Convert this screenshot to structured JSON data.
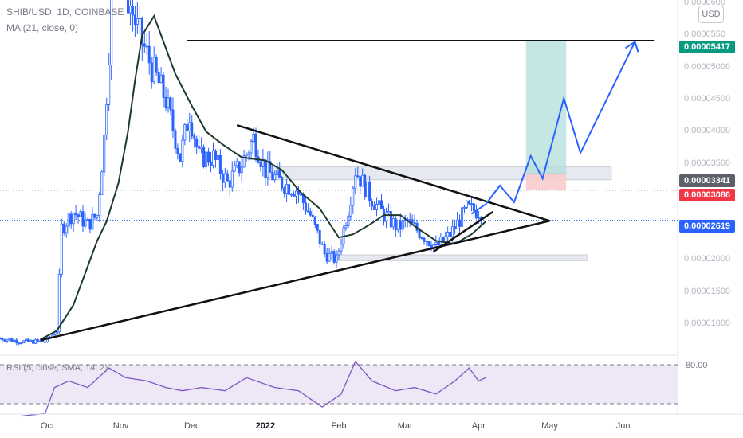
{
  "header": {
    "symbol": "SHIB/USD, 1D, COINBASE",
    "indicator": "MA (21, close, 0)"
  },
  "currency_button": "USD",
  "price_tags": [
    {
      "label": "0.00005417",
      "color": "#089981"
    },
    {
      "label": "0.00003341",
      "color": "#5d606b"
    },
    {
      "label": "0.00003086",
      "color": "#f23645"
    },
    {
      "label": "0.00002619",
      "color": "#2962ff"
    }
  ],
  "rsi": {
    "label": "RSI (5, close, SMA, 14, 2)",
    "upper": "80.00",
    "upper_value": 80,
    "lower_value": 20
  },
  "colors": {
    "candle": "#2962ff",
    "ma": "#1e3a2f",
    "pattern": "#111111",
    "projection": "#2962ff",
    "rsi_line": "#7e57c2",
    "rsi_band": "#ede7f6",
    "target_zone": "#b2dfdb",
    "stop_zone": "#f8c9ca",
    "sr_zone": "#e0e3eb"
  },
  "chart_data": {
    "type": "candlestick",
    "title": "SHIB/USD, 1D, COINBASE",
    "xlabel": "",
    "ylabel": "",
    "y_tick_labels": [
      "0.0000600",
      "0.0000550",
      "0.00005000",
      "0.00004500",
      "0.00004000",
      "0.00003500",
      "0.00003000",
      "0.00002500",
      "0.00002000",
      "0.00001500",
      "0.00001000"
    ],
    "y_ticks": [
      6e-05,
      5.5e-05,
      5e-05,
      4.5e-05,
      4e-05,
      3.5e-05,
      3e-05,
      2.5e-05,
      2e-05,
      1.5e-05,
      1e-05
    ],
    "x_tick_labels": [
      "Oct",
      "Nov",
      "Dec",
      "2022",
      "Feb",
      "Mar",
      "Apr",
      "May",
      "Jun"
    ],
    "x_ticks": [
      "2021-10-01",
      "2021-11-01",
      "2021-12-01",
      "2022-01-01",
      "2022-02-01",
      "2022-03-01",
      "2022-04-01",
      "2022-05-01",
      "2022-06-01"
    ],
    "ylim": [
      5.3e-06,
      6.05e-05
    ],
    "xlim": [
      "2021-09-11",
      "2022-06-24"
    ],
    "grid": false,
    "close_path": [
      [
        "2021-09-11",
        7.8e-06
      ],
      [
        "2021-09-20",
        7.3e-06
      ],
      [
        "2021-09-30",
        7.3e-06
      ],
      [
        "2021-10-05",
        9e-06
      ],
      [
        "2021-10-07",
        2.5e-05
      ],
      [
        "2021-10-12",
        2.75e-05
      ],
      [
        "2021-10-18",
        2.55e-05
      ],
      [
        "2021-10-22",
        2.7e-05
      ],
      [
        "2021-10-25",
        3.9e-05
      ],
      [
        "2021-10-27",
        5.3e-05
      ],
      [
        "2021-10-28",
        6.9e-05
      ],
      [
        "2021-10-31",
        7e-05
      ],
      [
        "2021-11-03",
        6.2e-05
      ],
      [
        "2021-11-08",
        5.6e-05
      ],
      [
        "2021-11-14",
        5e-05
      ],
      [
        "2021-11-20",
        4.5e-05
      ],
      [
        "2021-11-26",
        3.6e-05
      ],
      [
        "2021-11-30",
        4.3e-05
      ],
      [
        "2021-12-04",
        3.6e-05
      ],
      [
        "2021-12-10",
        3.6e-05
      ],
      [
        "2021-12-16",
        3.2e-05
      ],
      [
        "2021-12-22",
        3.5e-05
      ],
      [
        "2021-12-27",
        3.9e-05
      ],
      [
        "2022-01-01",
        3.4e-05
      ],
      [
        "2022-01-08",
        3.2e-05
      ],
      [
        "2022-01-14",
        3.1e-05
      ],
      [
        "2022-01-20",
        2.7e-05
      ],
      [
        "2022-01-26",
        2.1e-05
      ],
      [
        "2022-01-31",
        2e-05
      ],
      [
        "2022-02-05",
        2.8e-05
      ],
      [
        "2022-02-08",
        3.4e-05
      ],
      [
        "2022-02-14",
        3e-05
      ],
      [
        "2022-02-20",
        2.7e-05
      ],
      [
        "2022-02-26",
        2.5e-05
      ],
      [
        "2022-03-02",
        2.6e-05
      ],
      [
        "2022-03-08",
        2.4e-05
      ],
      [
        "2022-03-14",
        2.2e-05
      ],
      [
        "2022-03-20",
        2.4e-05
      ],
      [
        "2022-03-27",
        2.8e-05
      ],
      [
        "2022-04-02",
        2.75e-05
      ]
    ],
    "series": [
      {
        "name": "MA (21, close, 0)",
        "points": [
          [
            "2021-09-28",
            7.6e-06
          ],
          [
            "2021-10-05",
            9e-06
          ],
          [
            "2021-10-12",
            1.3e-05
          ],
          [
            "2021-10-18",
            1.9e-05
          ],
          [
            "2021-10-22",
            2.3e-05
          ],
          [
            "2021-10-26",
            2.6e-05
          ],
          [
            "2021-10-31",
            3.2e-05
          ],
          [
            "2021-11-04",
            4e-05
          ],
          [
            "2021-11-07",
            4.8e-05
          ],
          [
            "2021-11-10",
            5.5e-05
          ],
          [
            "2021-11-15",
            5.8e-05
          ],
          [
            "2021-11-19",
            5.4e-05
          ],
          [
            "2021-11-24",
            4.9e-05
          ],
          [
            "2021-12-01",
            4.4e-05
          ],
          [
            "2021-12-07",
            4e-05
          ],
          [
            "2021-12-14",
            3.8e-05
          ],
          [
            "2021-12-22",
            3.6e-05
          ],
          [
            "2022-01-01",
            3.55e-05
          ],
          [
            "2022-01-08",
            3.4e-05
          ],
          [
            "2022-01-16",
            3.05e-05
          ],
          [
            "2022-01-24",
            2.8e-05
          ],
          [
            "2022-02-01",
            2.35e-05
          ],
          [
            "2022-02-07",
            2.4e-05
          ],
          [
            "2022-02-14",
            2.55e-05
          ],
          [
            "2022-02-20",
            2.7e-05
          ],
          [
            "2022-02-27",
            2.7e-05
          ],
          [
            "2022-03-06",
            2.5e-05
          ],
          [
            "2022-03-14",
            2.3e-05
          ],
          [
            "2022-03-22",
            2.25e-05
          ],
          [
            "2022-03-29",
            2.4e-05
          ],
          [
            "2022-04-04",
            2.6e-05
          ]
        ]
      },
      {
        "name": "RSI (5, close, SMA, 14, 2)",
        "points": [
          [
            "2021-09-20",
            1
          ],
          [
            "2021-09-30",
            5
          ],
          [
            "2021-10-04",
            45
          ],
          [
            "2021-10-10",
            55
          ],
          [
            "2021-10-18",
            45
          ],
          [
            "2021-10-27",
            75
          ],
          [
            "2021-11-03",
            60
          ],
          [
            "2021-11-12",
            55
          ],
          [
            "2021-11-20",
            45
          ],
          [
            "2021-11-27",
            40
          ],
          [
            "2021-12-05",
            45
          ],
          [
            "2021-12-15",
            40
          ],
          [
            "2021-12-24",
            60
          ],
          [
            "2022-01-05",
            45
          ],
          [
            "2022-01-15",
            40
          ],
          [
            "2022-01-25",
            15
          ],
          [
            "2022-02-02",
            35
          ],
          [
            "2022-02-08",
            85
          ],
          [
            "2022-02-15",
            55
          ],
          [
            "2022-02-25",
            40
          ],
          [
            "2022-03-05",
            45
          ],
          [
            "2022-03-14",
            35
          ],
          [
            "2022-03-22",
            55
          ],
          [
            "2022-03-28",
            75
          ],
          [
            "2022-04-01",
            55
          ],
          [
            "2022-04-04",
            60
          ]
        ]
      }
    ],
    "annotations": {
      "resistance_line": [
        [
          "2021-11-29",
          5.417e-05
        ],
        [
          "2022-06-14",
          5.417e-05
        ]
      ],
      "triangle_upper": [
        [
          "2021-12-20",
          4.1e-05
        ],
        [
          "2022-05-01",
          2.61e-05
        ]
      ],
      "triangle_lower": [
        [
          "2021-09-28",
          7.5e-06
        ],
        [
          "2022-05-01",
          2.61e-05
        ]
      ],
      "breakout_trend": [
        [
          "2022-03-13",
          2.13e-05
        ],
        [
          "2022-04-07",
          2.75e-05
        ]
      ],
      "supply_zone": {
        "x": [
          "2022-01-02",
          "2022-05-27"
        ],
        "y": [
          3.25e-05,
          3.45e-05
        ]
      },
      "demand_zone": {
        "x": [
          "2022-01-30",
          "2022-05-17"
        ],
        "y": [
          1.99e-05,
          2.08e-05
        ]
      },
      "long_position": {
        "x": [
          "2022-04-21",
          "2022-05-08"
        ],
        "entry": 3.341e-05,
        "target": 5.417e-05,
        "stop": 3.086e-05
      },
      "projection_path": [
        [
          "2022-03-29",
          2.72e-05
        ],
        [
          "2022-04-04",
          2.87e-05
        ],
        [
          "2022-04-10",
          3.16e-05
        ],
        [
          "2022-04-16",
          2.9e-05
        ],
        [
          "2022-04-23",
          3.62e-05
        ],
        [
          "2022-04-28",
          3.27e-05
        ],
        [
          "2022-05-07",
          4.52e-05
        ],
        [
          "2022-05-14",
          3.67e-05
        ],
        [
          "2022-06-06",
          5.4e-05
        ],
        [
          "2022-06-09",
          5.15e-05
        ]
      ]
    }
  }
}
